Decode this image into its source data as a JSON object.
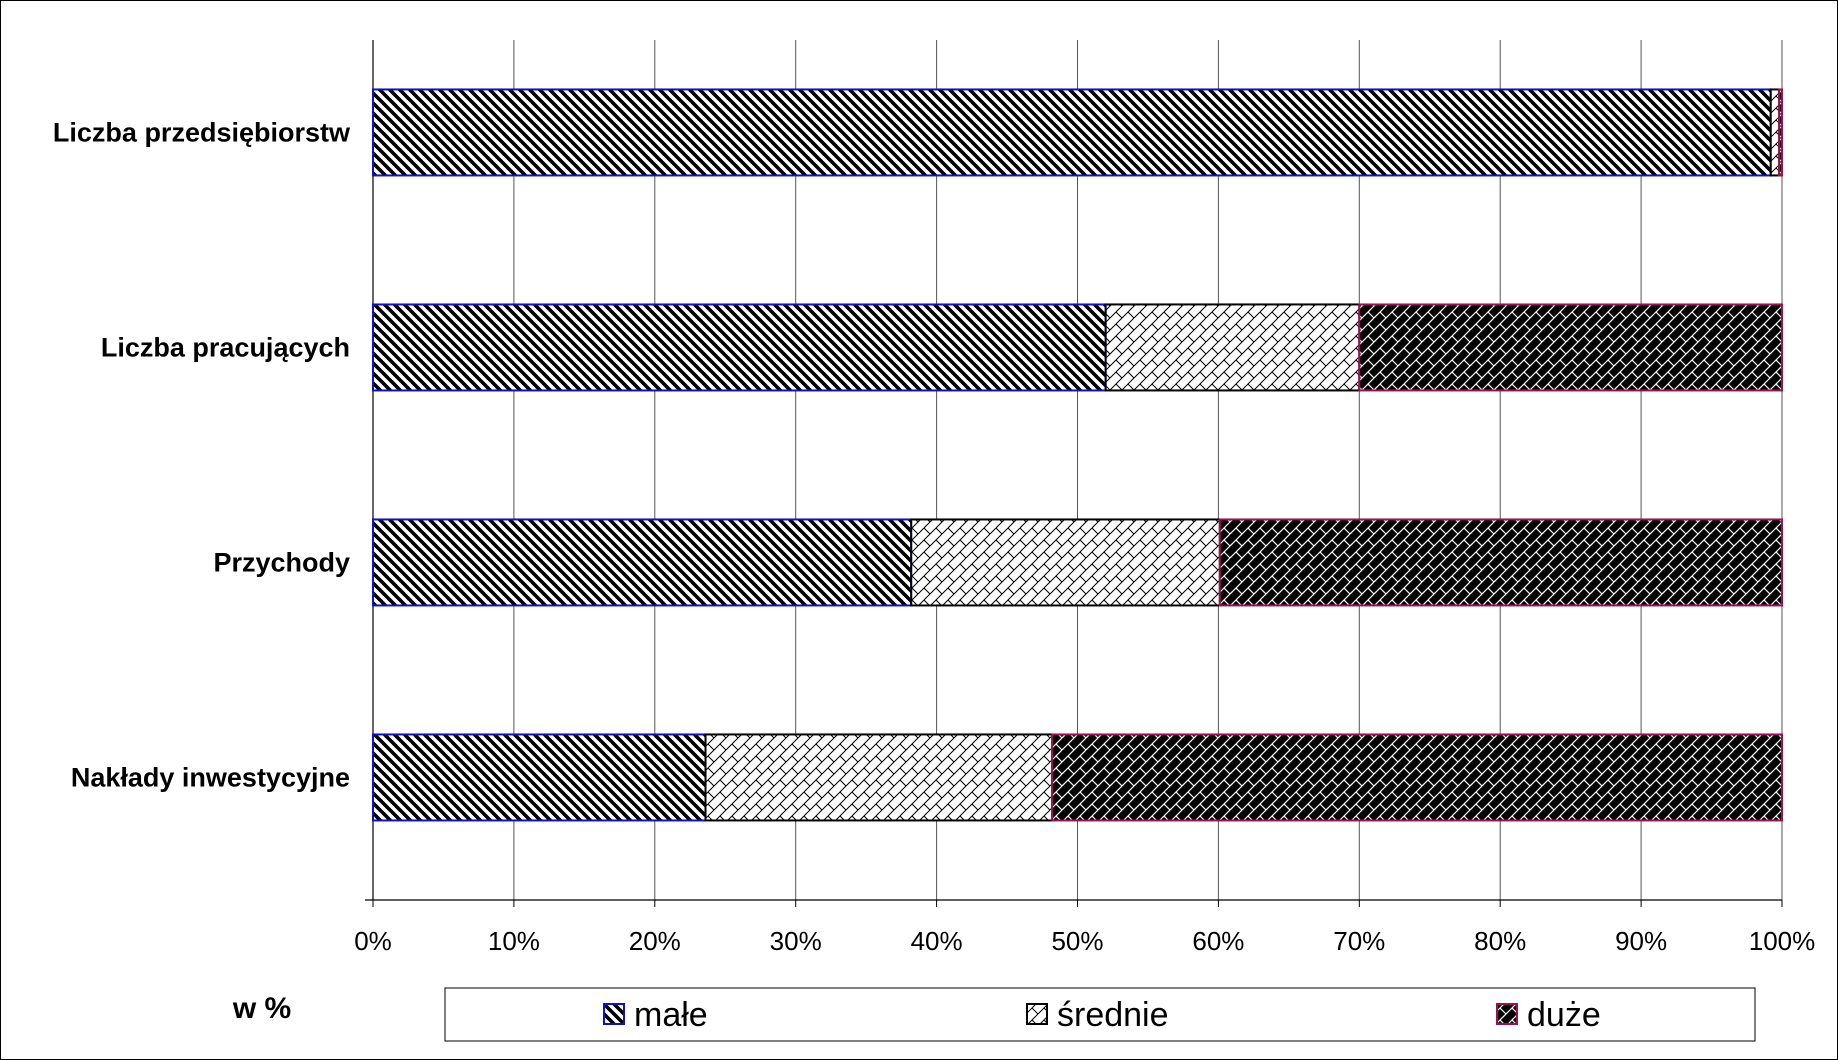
{
  "chart_data": {
    "type": "bar",
    "orientation": "horizontal",
    "stacked": "percent",
    "categories": [
      "Liczba przedsiębiorstw",
      "Liczba pracujących",
      "Przychody",
      "Nakłady inwestycyjne"
    ],
    "series": [
      {
        "name": "małe",
        "values": [
          99.2,
          52.0,
          38.2,
          23.6
        ],
        "pattern": "diagonal-hatch",
        "border_color": "#1010c8"
      },
      {
        "name": "średnie",
        "values": [
          0.6,
          18.0,
          21.9,
          24.6
        ],
        "pattern": "light-crosshatch",
        "border_color": "#000000"
      },
      {
        "name": "duże",
        "values": [
          0.2,
          30.0,
          39.9,
          51.8
        ],
        "pattern": "dark-crosshatch",
        "border_color": "#a01050"
      }
    ],
    "xlim": [
      0,
      100
    ],
    "x_ticks": [
      "0%",
      "10%",
      "20%",
      "30%",
      "40%",
      "50%",
      "60%",
      "70%",
      "80%",
      "90%",
      "100%"
    ],
    "grid": "vertical",
    "unit_label": "w %",
    "legend_position": "bottom"
  }
}
